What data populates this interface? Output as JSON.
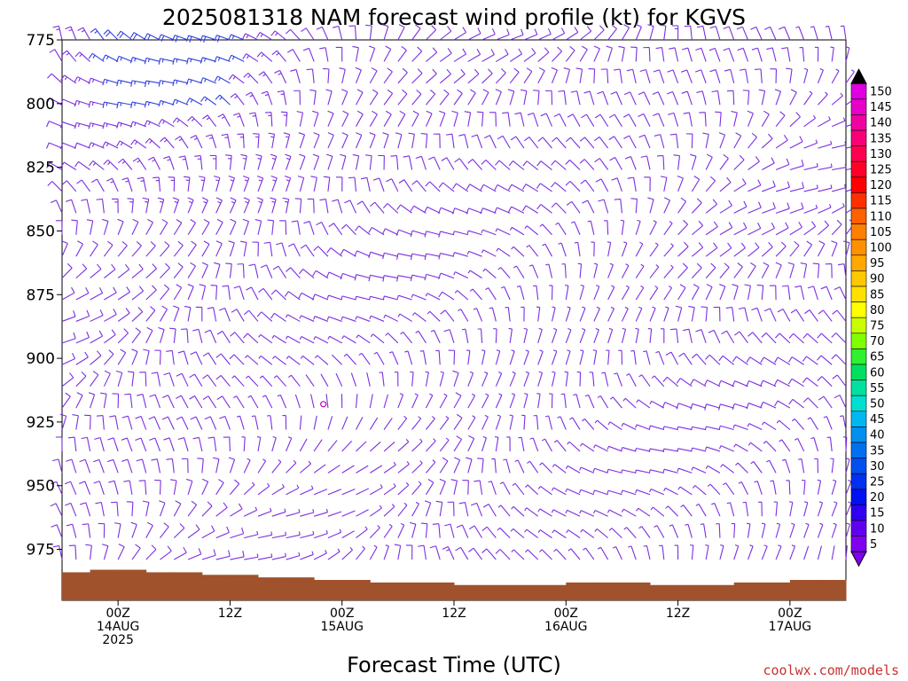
{
  "chart_data": {
    "type": "wind-barb-profile",
    "title": "2025081318 NAM forecast wind profile (kt) for KGVS",
    "xlabel": "Forecast Time (UTC)",
    "y_ticks": [
      "775",
      "800",
      "825",
      "850",
      "875",
      "900",
      "925",
      "950",
      "975"
    ],
    "y_values": [
      775,
      800,
      825,
      850,
      875,
      900,
      925,
      950,
      975
    ],
    "ylim": [
      775,
      995
    ],
    "x_range_hours": [
      -6,
      78
    ],
    "x_ticks": [
      {
        "hour": 0,
        "line1": "00Z",
        "line2": "14AUG",
        "line3": "2025"
      },
      {
        "hour": 12,
        "line1": "12Z",
        "line2": "",
        "line3": ""
      },
      {
        "hour": 24,
        "line1": "00Z",
        "line2": "15AUG",
        "line3": ""
      },
      {
        "hour": 36,
        "line1": "12Z",
        "line2": "",
        "line3": ""
      },
      {
        "hour": 48,
        "line1": "00Z",
        "line2": "16AUG",
        "line3": ""
      },
      {
        "hour": 60,
        "line1": "12Z",
        "line2": "",
        "line3": ""
      },
      {
        "hour": 72,
        "line1": "00Z",
        "line2": "17AUG",
        "line3": ""
      }
    ],
    "colorbar": {
      "ticks": [
        "150",
        "145",
        "140",
        "135",
        "130",
        "125",
        "120",
        "115",
        "110",
        "105",
        "100",
        "95",
        "90",
        "85",
        "80",
        "75",
        "70",
        "65",
        "60",
        "55",
        "50",
        "45",
        "40",
        "35",
        "30",
        "25",
        "20",
        "15",
        "10",
        "5"
      ],
      "colors": [
        "#e000e0",
        "#e800c8",
        "#f000a0",
        "#f80078",
        "#ff0050",
        "#ff0028",
        "#ff0000",
        "#ff3000",
        "#ff6000",
        "#ff8000",
        "#ff9000",
        "#ffa800",
        "#ffc800",
        "#ffe000",
        "#ffff00",
        "#c8ff00",
        "#80ff00",
        "#30f030",
        "#00e060",
        "#00e0a0",
        "#00e0d0",
        "#00b8f0",
        "#0090f0",
        "#0070f0",
        "#0050f0",
        "#0030f0",
        "#0010f0",
        "#3000f0",
        "#6000f0",
        "#8000f0"
      ]
    },
    "wind_speed_kt_by_hour": [
      {
        "hour": -6,
        "p775": 15,
        "p850": 10,
        "p925": 10,
        "p975": 10
      },
      {
        "hour": 0,
        "p775": 20,
        "p850": 15,
        "p925": 10,
        "p975": 10
      },
      {
        "hour": 12,
        "p775": 20,
        "p850": 15,
        "p925": 10,
        "p975": 10
      },
      {
        "hour": 24,
        "p775": 10,
        "p850": 15,
        "p925": 0,
        "p975": 5
      },
      {
        "hour": 36,
        "p775": 10,
        "p850": 10,
        "p925": 10,
        "p975": 15
      },
      {
        "hour": 48,
        "p775": 10,
        "p850": 10,
        "p925": 5,
        "p975": 5
      },
      {
        "hour": 60,
        "p775": 15,
        "p850": 10,
        "p925": 10,
        "p975": 5
      },
      {
        "hour": 72,
        "p775": 10,
        "p850": 10,
        "p925": 10,
        "p975": 5
      }
    ],
    "terrain_top_hpa": [
      984,
      983,
      983,
      984,
      984,
      985,
      985,
      986,
      986,
      987,
      987,
      988,
      988,
      988,
      989,
      989,
      989,
      989,
      988,
      988,
      988,
      989,
      989,
      989,
      988,
      988,
      987,
      987
    ]
  },
  "credit": "coolwx.com/models",
  "colors": {
    "terrain": "#a0522d",
    "barb": "#7b2fe0",
    "barb_strong": "#3040e0"
  }
}
